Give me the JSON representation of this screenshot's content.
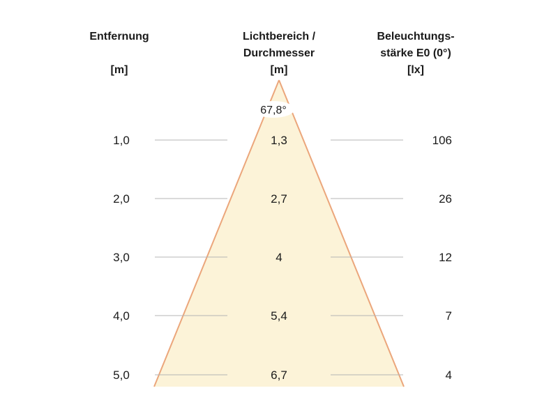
{
  "headers": {
    "distance": {
      "line1": "Entfernung",
      "unit": "[m]"
    },
    "diameter": {
      "line1": "Lichtbereich /",
      "line2": "Durchmesser",
      "unit": "[m]"
    },
    "illuminance": {
      "line1": "Beleuchtungs-",
      "line2": "stärke E0 (0°)",
      "unit": "[lx]"
    }
  },
  "beam_angle": "67,8°",
  "rows": [
    {
      "distance": "1,0",
      "diameter": "1,3",
      "illuminance": "106"
    },
    {
      "distance": "2,0",
      "diameter": "2,7",
      "illuminance": "26"
    },
    {
      "distance": "3,0",
      "diameter": "4",
      "illuminance": "12"
    },
    {
      "distance": "4,0",
      "diameter": "5,4",
      "illuminance": "7"
    },
    {
      "distance": "5,0",
      "diameter": "6,7",
      "illuminance": "4"
    }
  ],
  "colors": {
    "cone_fill": "#fcf3d8",
    "cone_edge": "#eba67b",
    "guide_line": "#b4b4b4"
  }
}
